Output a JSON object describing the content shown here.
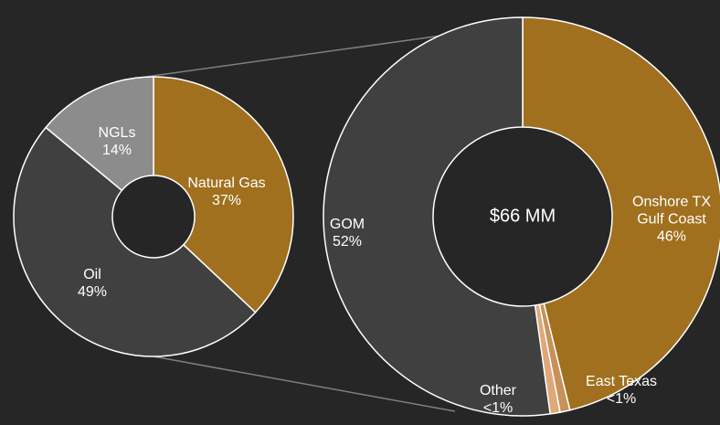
{
  "chart_data": [
    {
      "type": "donut",
      "categories": [
        "Natural Gas",
        "Oil",
        "NGLs"
      ],
      "values": [
        37,
        49,
        14
      ],
      "value_labels": [
        "37%",
        "49%",
        "14%"
      ],
      "colors": [
        "#a0701e",
        "#404040",
        "#8c8c8c"
      ]
    },
    {
      "type": "donut",
      "annotation": "$66 MM",
      "categories": [
        "Onshore TX Gulf Coast",
        "East Texas",
        "Other",
        "GOM"
      ],
      "values": [
        46,
        0.8,
        0.8,
        52
      ],
      "value_labels": [
        "46%",
        "<1%",
        "<1%",
        "52%"
      ],
      "colors": [
        "#a0701e",
        "#c8915a",
        "#e0a878",
        "#404040"
      ]
    }
  ]
}
